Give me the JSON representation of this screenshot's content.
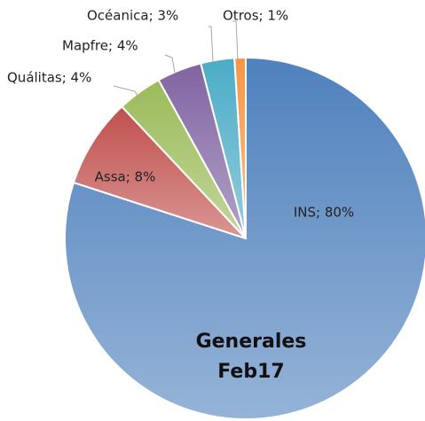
{
  "chart_data": {
    "type": "pie",
    "title": [
      "Generales",
      "Feb17"
    ],
    "categories": [
      "INS",
      "Assa",
      "Quálitas",
      "Mapfre",
      "Océanica",
      "Otros"
    ],
    "values": [
      80,
      8,
      4,
      4,
      3,
      1
    ],
    "value_labels": [
      "INS; 80%",
      "Assa; 8%",
      "Quálitas; 4%",
      "Mapfre; 4%",
      "Océanica; 3%",
      "Otros; 1%"
    ],
    "colors": [
      "#4f81bd",
      "#c0504d",
      "#9bbb59",
      "#8064a2",
      "#4bacc6",
      "#f79646"
    ]
  }
}
